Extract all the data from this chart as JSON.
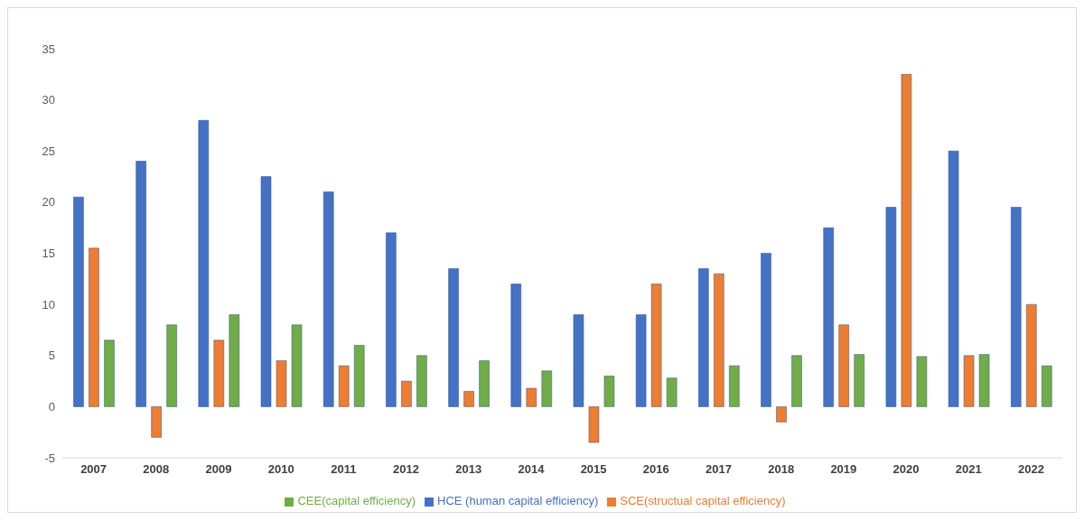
{
  "chart_data": {
    "type": "bar",
    "categories": [
      "2007",
      "2008",
      "2009",
      "2010",
      "2011",
      "2012",
      "2013",
      "2014",
      "2015",
      "2016",
      "2017",
      "2018",
      "2019",
      "2020",
      "2021",
      "2022"
    ],
    "series": [
      {
        "name": "HCE (human capital efficiency)",
        "color": "#4472c4",
        "values": [
          20.5,
          24,
          28,
          22.5,
          21,
          17,
          13.5,
          12,
          9,
          9,
          13.5,
          15,
          17.5,
          19.5,
          25,
          19.5
        ]
      },
      {
        "name": "SCE(structual capital  efficiency)",
        "color": "#ed7d31",
        "values": [
          15.5,
          -3,
          6.5,
          4.5,
          4,
          2.5,
          1.5,
          1.8,
          -3.5,
          12,
          13,
          -1.5,
          8,
          32.5,
          5,
          10
        ]
      },
      {
        "name": "CEE(capital efficiency)",
        "color": "#70ad47",
        "values": [
          6.5,
          8,
          9,
          8,
          6,
          5,
          4.5,
          3.5,
          3,
          2.8,
          4,
          5,
          5.1,
          4.9,
          5.1,
          4
        ]
      }
    ],
    "ylim": [
      -5,
      35
    ],
    "yticks": [
      -5,
      0,
      5,
      10,
      15,
      20,
      25,
      30,
      35
    ],
    "grid": false,
    "legend": "bottom"
  }
}
